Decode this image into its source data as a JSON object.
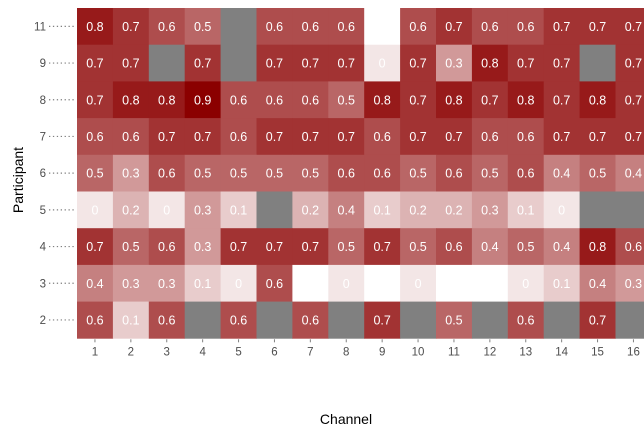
{
  "chart_data": {
    "type": "heatmap",
    "xlabel": "Channel",
    "ylabel": "Participant",
    "x_categories": [
      "1",
      "2",
      "3",
      "4",
      "5",
      "6",
      "7",
      "8",
      "9",
      "10",
      "11",
      "12",
      "13",
      "14",
      "15",
      "16"
    ],
    "y_categories": [
      "2",
      "3",
      "4",
      "5",
      "6",
      "7",
      "8",
      "9",
      "11"
    ],
    "rows": [
      {
        "participant": "11",
        "values": [
          0.8,
          0.7,
          0.6,
          0.5,
          null,
          0.6,
          0.6,
          0.6,
          -0.1,
          0.6,
          0.7,
          0.6,
          0.6,
          0.7,
          0.7,
          0.7
        ]
      },
      {
        "participant": "9",
        "values": [
          0.7,
          0.7,
          null,
          0.7,
          null,
          0.7,
          0.7,
          0.7,
          0,
          0.7,
          0.3,
          0.8,
          0.7,
          0.7,
          null,
          0.7
        ]
      },
      {
        "participant": "8",
        "values": [
          0.7,
          0.8,
          0.8,
          0.9,
          0.6,
          0.6,
          0.6,
          0.5,
          0.8,
          0.7,
          0.8,
          0.7,
          0.8,
          0.7,
          0.8,
          0.7
        ]
      },
      {
        "participant": "7",
        "values": [
          0.6,
          0.6,
          0.7,
          0.7,
          0.6,
          0.7,
          0.7,
          0.7,
          0.6,
          0.7,
          0.7,
          0.6,
          0.6,
          0.7,
          0.7,
          0.7
        ]
      },
      {
        "participant": "6",
        "values": [
          0.5,
          0.3,
          0.6,
          0.5,
          0.5,
          0.5,
          0.5,
          0.6,
          0.6,
          0.5,
          0.6,
          0.5,
          0.6,
          0.4,
          0.5,
          0.4
        ]
      },
      {
        "participant": "5",
        "values": [
          0,
          0.2,
          0,
          0.3,
          0.1,
          null,
          0.2,
          0.4,
          0.1,
          0.2,
          0.2,
          0.3,
          0.1,
          0,
          null,
          null
        ]
      },
      {
        "participant": "4",
        "values": [
          0.7,
          0.5,
          0.6,
          0.3,
          0.7,
          0.7,
          0.7,
          0.5,
          0.7,
          0.5,
          0.6,
          0.4,
          0.5,
          0.4,
          0.8,
          0.6
        ]
      },
      {
        "participant": "3",
        "values": [
          0.4,
          0.3,
          0.3,
          0.1,
          0,
          0.6,
          -0.1,
          0,
          -0.1,
          0,
          "blank",
          "blank",
          0,
          0.1,
          0.4,
          0.3
        ]
      },
      {
        "participant": "2",
        "values": [
          0.6,
          0.1,
          0.6,
          null,
          0.6,
          null,
          0.6,
          null,
          0.7,
          null,
          0.5,
          null,
          0.6,
          null,
          0.7,
          null
        ]
      }
    ],
    "color_scale": {
      "low": "#ffffff",
      "high": "#8b0000",
      "domain": [
        -0.1,
        0.9
      ]
    },
    "na_color": "#808080",
    "grid": false,
    "legend": "none"
  }
}
